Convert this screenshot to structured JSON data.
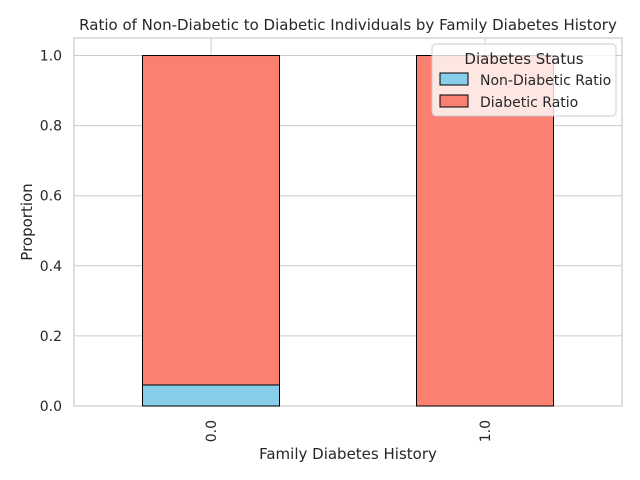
{
  "chart_data": {
    "type": "bar",
    "stacked": true,
    "title": "Ratio of Non-Diabetic to Diabetic Individuals by Family Diabetes History",
    "xlabel": "Family Diabetes History",
    "ylabel": "Proportion",
    "categories": [
      "0.0",
      "1.0"
    ],
    "ylim": [
      0,
      1.05
    ],
    "yticks": [
      "0.0",
      "0.2",
      "0.4",
      "0.6",
      "0.8",
      "1.0"
    ],
    "grid": true,
    "legend": {
      "title": "Diabetes Status",
      "placement": "top-right"
    },
    "series": [
      {
        "name": "Non-Diabetic Ratio",
        "color": "#87CEEB",
        "values": [
          0.06,
          0.0
        ]
      },
      {
        "name": "Diabetic Ratio",
        "color": "#FA8072",
        "values": [
          0.94,
          1.0
        ]
      }
    ]
  }
}
